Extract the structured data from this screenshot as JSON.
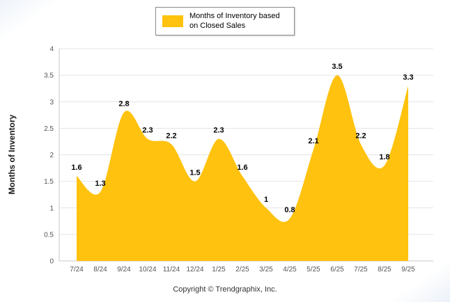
{
  "page": {
    "footer": "Copyright © Trendgraphix, Inc."
  },
  "legend": {
    "label": "Months of Inventory based on Closed Sales",
    "swatch_color": "#FFC20E"
  },
  "chart_data": {
    "type": "area",
    "title": "",
    "xlabel": "",
    "ylabel": "Months of Inventory",
    "categories": [
      "7/24",
      "8/24",
      "9/24",
      "10/24",
      "11/24",
      "12/24",
      "1/25",
      "2/25",
      "3/25",
      "4/25",
      "5/25",
      "6/25",
      "7/25",
      "8/25",
      "9/25"
    ],
    "series": [
      {
        "name": "Months of Inventory based on Closed Sales",
        "values": [
          1.6,
          1.3,
          2.8,
          2.3,
          2.2,
          1.5,
          2.3,
          1.6,
          1,
          0.8,
          2.1,
          3.5,
          2.2,
          1.8,
          3.3
        ]
      }
    ],
    "point_labels": [
      "1.6",
      "1.3",
      "2.8",
      "2.3",
      "2.2",
      "1.5",
      "2.3",
      "1.6",
      "1",
      "0.8",
      "2.1",
      "3.5",
      "2.2",
      "1.8",
      "3.3"
    ],
    "ylim": [
      0,
      4
    ],
    "ytick_step": 0.5,
    "grid": true,
    "legend_position": "top",
    "fill_color": "#FFC20E",
    "label_color": "#000000",
    "tick_color": "#555555",
    "grid_color": "#e4e4e4",
    "axis_color": "#c9c9c9"
  }
}
